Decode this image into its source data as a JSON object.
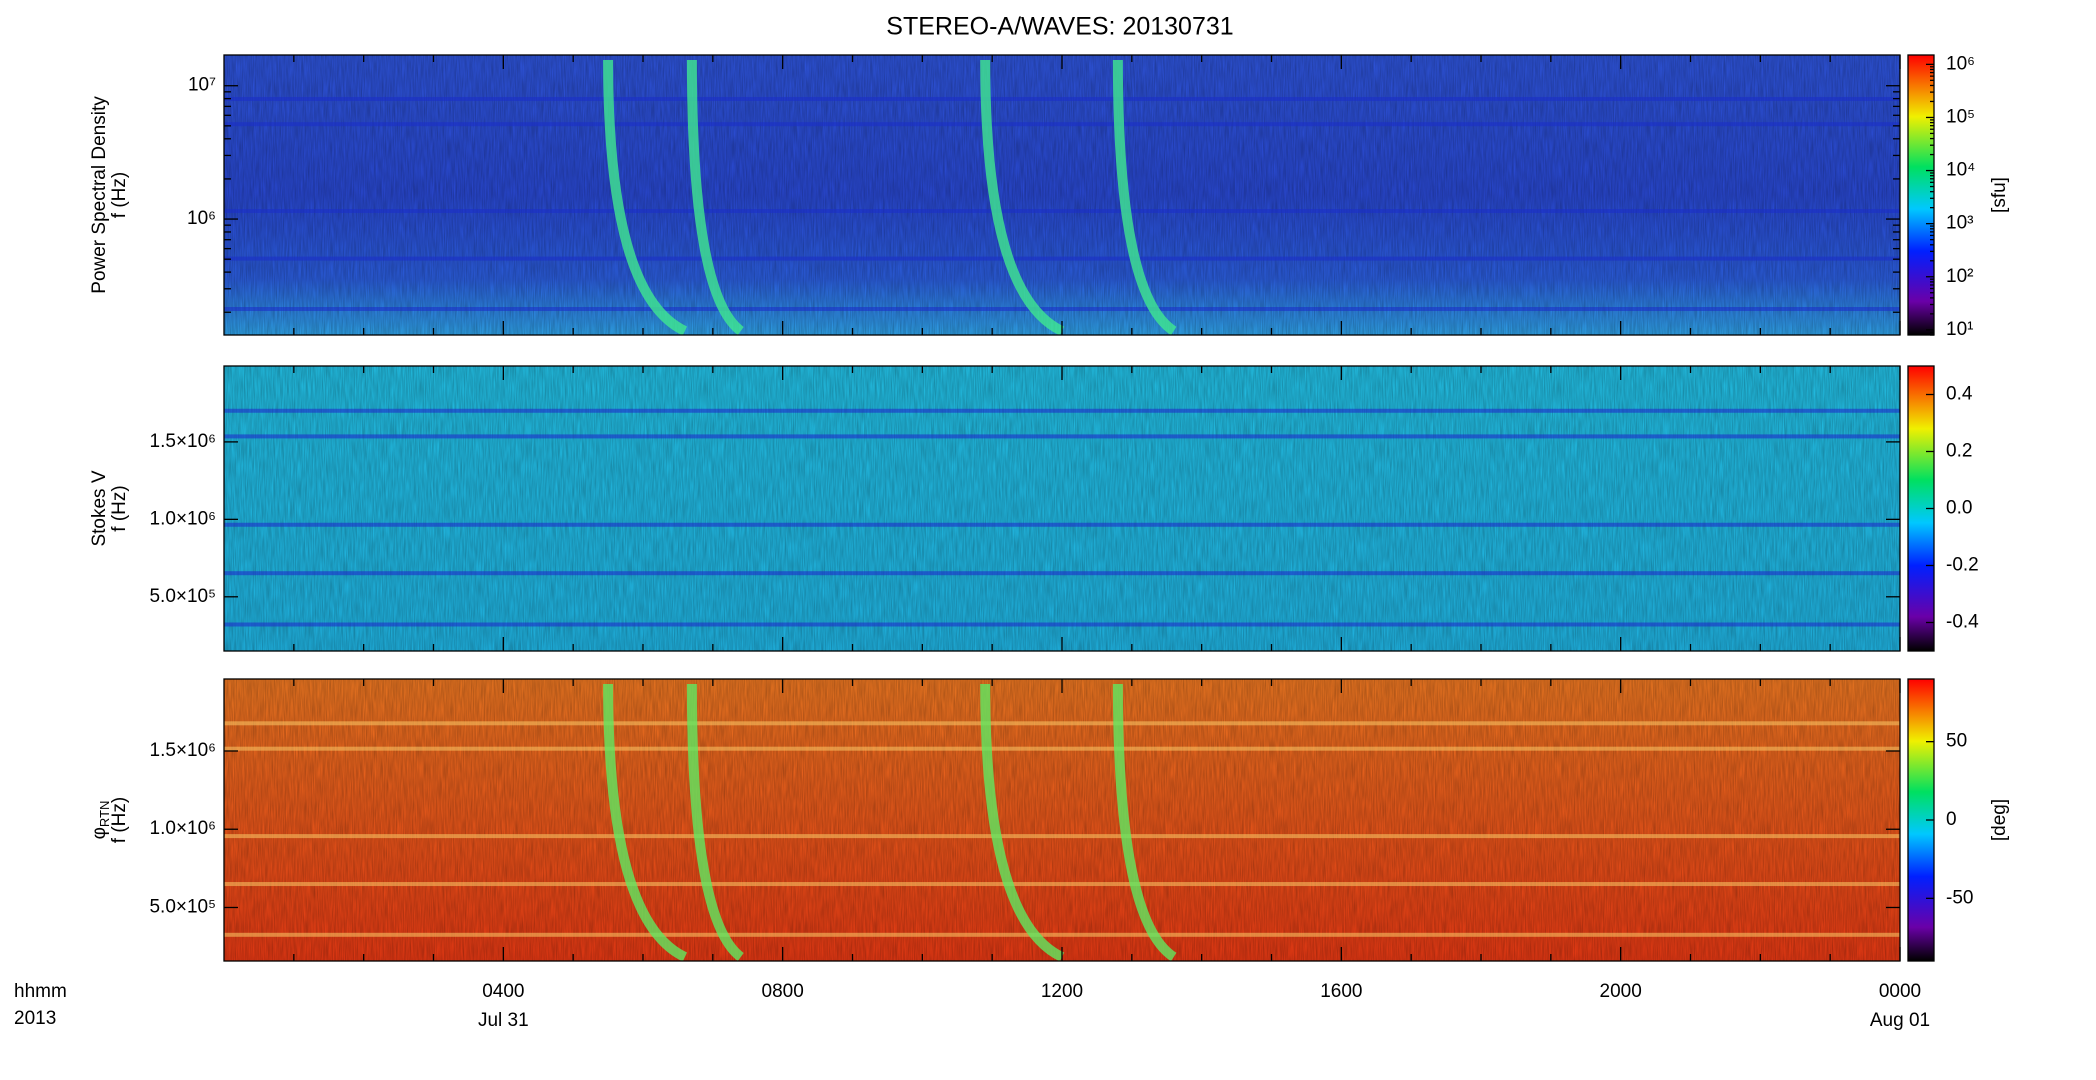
{
  "title": "STEREO-A/WAVES: 20130731",
  "xaxis": {
    "xlim": [
      0,
      24
    ],
    "xticks": [
      {
        "value": 4,
        "label": "0400"
      },
      {
        "value": 8,
        "label": "0800"
      },
      {
        "value": 12,
        "label": "1200"
      },
      {
        "value": 16,
        "label": "1600"
      },
      {
        "value": 20,
        "label": "2000"
      },
      {
        "value": 24,
        "label": "0000"
      }
    ],
    "dates": [
      {
        "value": 4,
        "label": "Jul 31"
      },
      {
        "value": 24,
        "label": "Aug 01"
      }
    ],
    "corner_labels": [
      "hhmm",
      "2013"
    ]
  },
  "chart_data": [
    {
      "type": "spectrogram",
      "ylabel": [
        "Power Spectral Density",
        "f (Hz)"
      ],
      "ylog": true,
      "ylim": [
        135000,
        17000000
      ],
      "yticks": [
        {
          "value": 1000000,
          "label": "10⁶"
        },
        {
          "value": 10000000,
          "label": "10⁷"
        }
      ],
      "colorbar": {
        "log": true,
        "clim": [
          8,
          1500000
        ],
        "label": "[sfu]",
        "ticks": [
          {
            "value": 10,
            "label": "10¹"
          },
          {
            "value": 100,
            "label": "10²"
          },
          {
            "value": 1000,
            "label": "10³"
          },
          {
            "value": 10000,
            "label": "10⁴"
          },
          {
            "value": 100000,
            "label": "10⁵"
          },
          {
            "value": 1000000,
            "label": "10⁶"
          }
        ]
      }
    },
    {
      "type": "spectrogram",
      "ylabel": [
        "Stokes V",
        "f (Hz)"
      ],
      "ylog": false,
      "ylim": [
        150000,
        1990000
      ],
      "yticks": [
        {
          "value": 500000,
          "label": "5.0×10⁵"
        },
        {
          "value": 1000000,
          "label": "1.0×10⁶"
        },
        {
          "value": 1500000,
          "label": "1.5×10⁶"
        }
      ],
      "colorbar": {
        "log": false,
        "clim": [
          -0.5,
          0.5
        ],
        "ticks": [
          -0.4,
          -0.2,
          {
            "value": 0,
            "label": "0.0"
          },
          0.2,
          0.4
        ]
      }
    },
    {
      "type": "spectrogram",
      "ylabel": [
        "φ",
        "f (Hz)"
      ],
      "ylabel_subscript": "RTN",
      "ylog": false,
      "ylim": [
        158000,
        1960000
      ],
      "yticks": [
        {
          "value": 500000,
          "label": "5.0×10⁵"
        },
        {
          "value": 1000000,
          "label": "1.0×10⁶"
        },
        {
          "value": 1500000,
          "label": "1.5×10⁶"
        }
      ],
      "colorbar": {
        "log": false,
        "clim": [
          -90,
          90
        ],
        "label": "[deg]",
        "ticks": [
          -50,
          0,
          50
        ]
      }
    }
  ]
}
